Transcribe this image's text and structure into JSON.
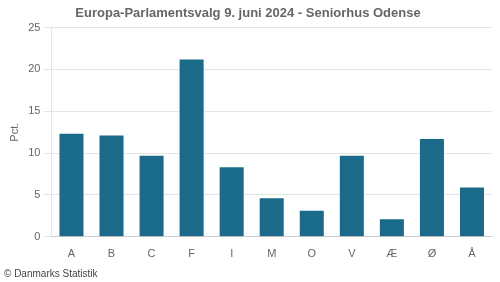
{
  "chart_data": {
    "type": "bar",
    "title": "Europa-Parlamentsvalg 9. juni 2024 - Seniorhus Odense",
    "ylabel": "Pct.",
    "footer": "© Danmarks Statistik",
    "categories": [
      "A",
      "B",
      "C",
      "F",
      "I",
      "M",
      "O",
      "V",
      "Æ",
      "Ø",
      "Å"
    ],
    "values": [
      12.3,
      12.1,
      9.7,
      21.2,
      8.3,
      4.6,
      3.1,
      9.7,
      2.1,
      11.7,
      5.9
    ],
    "color": "#1a6b8a",
    "ylim": [
      0,
      25
    ],
    "yticks": [
      0,
      5,
      10,
      15,
      20,
      25
    ],
    "grid": true
  }
}
